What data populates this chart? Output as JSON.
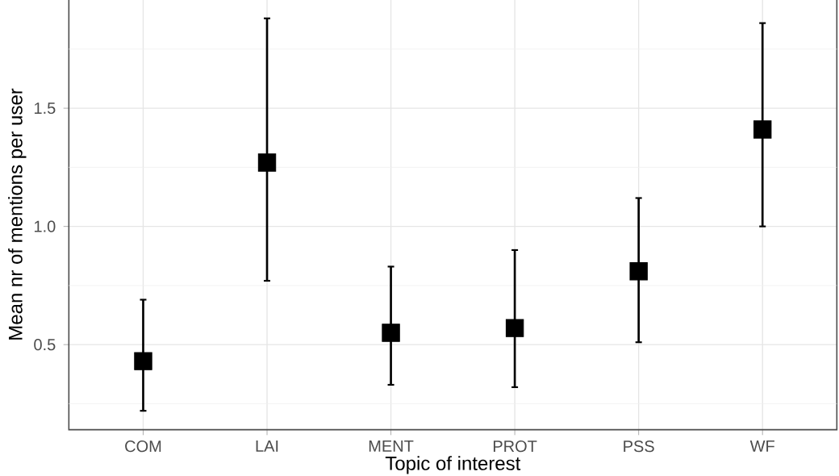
{
  "chart_data": {
    "type": "scatter",
    "xlabel": "Topic of interest",
    "ylabel": "Mean nr of mentions per user",
    "categories": [
      "COM",
      "LAI",
      "MENT",
      "PROT",
      "PSS",
      "WF"
    ],
    "values": [
      0.43,
      1.27,
      0.55,
      0.57,
      0.81,
      1.41
    ],
    "errors": [
      [
        0.22,
        0.69
      ],
      [
        0.77,
        1.88
      ],
      [
        0.33,
        0.83
      ],
      [
        0.32,
        0.9
      ],
      [
        0.51,
        1.12
      ],
      [
        1.0,
        1.86
      ]
    ],
    "color": "#000000",
    "marker": "square",
    "grid": true,
    "ylim": [
      0.14,
      1.96
    ],
    "yticks": [
      {
        "value": 0.25,
        "label": null
      },
      0.5,
      {
        "value": 0.75,
        "label": null
      },
      {
        "value": 1,
        "label": "1.0"
      },
      {
        "value": 1.25,
        "label": null
      },
      1.5,
      {
        "value": 1.75,
        "label": null
      }
    ]
  }
}
